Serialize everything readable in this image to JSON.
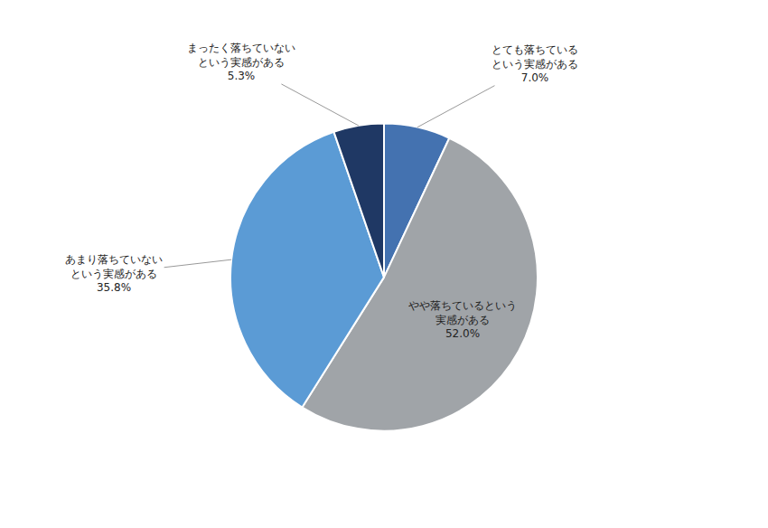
{
  "chart_data": {
    "type": "pie",
    "categories": [
      "とても落ちている\nという実感がある",
      "やや落ちているという\n実感がある",
      "あまり落ちていない\nという実感がある",
      "まったく落ちていない\nという実感がある"
    ],
    "values": [
      7.0,
      52.0,
      35.8,
      5.3
    ],
    "value_labels": [
      "7.0%",
      "52.0%",
      "35.8%",
      "5.3%"
    ],
    "colors": [
      "#4472b0",
      "#a0a4a8",
      "#5b9bd5",
      "#1f3864"
    ],
    "data_labels": true
  }
}
